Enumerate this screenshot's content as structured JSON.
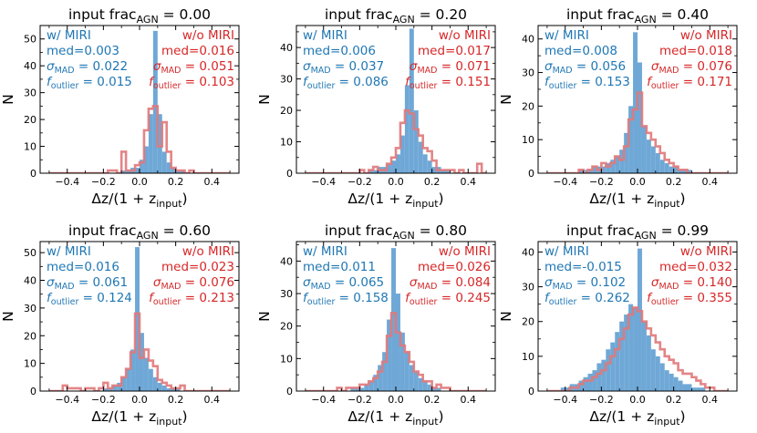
{
  "colors": {
    "with_miri": "#1f77b4",
    "with_miri_bars": "#6fa8d6",
    "without_miri": "#d62728",
    "without_miri_step": "#e0787a"
  },
  "chart_data": [
    {
      "type": "histogram",
      "title_prefix": "input frac",
      "title_sub": "AGN",
      "title_value": "= 0.00",
      "xlabel": "Δz/(1 + z",
      "xlabel_sub": "input",
      "xlabel_suffix": ")",
      "ylabel": "N",
      "xlim": [
        -0.55,
        0.55
      ],
      "ylim": [
        0,
        55
      ],
      "xticks": [
        -0.4,
        -0.2,
        0.0,
        0.2,
        0.4
      ],
      "xtick_labels": [
        "−0.4",
        "−0.2",
        "0.0",
        "0.2",
        "0.4"
      ],
      "yticks": [
        0,
        10,
        20,
        30,
        40,
        50
      ],
      "ytick_labels": [
        "0",
        "10",
        "20",
        "30",
        "40",
        "50"
      ],
      "bin_edges_start": -0.5,
      "bin_width": 0.025,
      "with_miri_counts": [
        0,
        0,
        0,
        0,
        0,
        0,
        0,
        0,
        0,
        0,
        0,
        0,
        0,
        0,
        0,
        0,
        1,
        1,
        2,
        2,
        5,
        10,
        22,
        53,
        22,
        8,
        4,
        2,
        1,
        1,
        0,
        0,
        0,
        0,
        0,
        0,
        0,
        0,
        0,
        0
      ],
      "without_miri_counts": [
        0,
        0,
        0,
        0,
        0,
        0,
        0,
        0,
        0,
        0,
        0,
        0,
        0,
        1,
        1,
        0,
        8,
        1,
        1,
        3,
        4,
        16,
        24,
        25,
        10,
        19,
        8,
        2,
        1,
        1,
        0,
        1,
        0,
        0,
        0,
        0,
        0,
        0,
        0,
        0
      ],
      "with_miri_stats": {
        "label": "w/ MIRI",
        "med": "med=0.003",
        "sigma_value": " = 0.022",
        "foutlier_value": " = 0.015"
      },
      "without_miri_stats": {
        "label": "w/o MIRI",
        "med": "med=0.016",
        "sigma_value": " = 0.051",
        "foutlier_value": " = 0.103"
      }
    },
    {
      "type": "histogram",
      "title_prefix": "input frac",
      "title_sub": "AGN",
      "title_value": "= 0.20",
      "xlabel": "Δz/(1 + z",
      "xlabel_sub": "input",
      "xlabel_suffix": ")",
      "ylabel": "N",
      "xlim": [
        -0.55,
        0.55
      ],
      "ylim": [
        0,
        47
      ],
      "xticks": [
        -0.4,
        -0.2,
        0.0,
        0.2,
        0.4
      ],
      "xtick_labels": [
        "−0.4",
        "−0.2",
        "0.0",
        "0.2",
        "0.4"
      ],
      "yticks": [
        0,
        10,
        20,
        30,
        40
      ],
      "ytick_labels": [
        "0",
        "10",
        "20",
        "30",
        "40"
      ],
      "bin_edges_start": -0.5,
      "bin_width": 0.025,
      "with_miri_counts": [
        0,
        0,
        0,
        0,
        0,
        0,
        0,
        0,
        0,
        0,
        0,
        0,
        0,
        0,
        1,
        1,
        2,
        2,
        3,
        4,
        6,
        12,
        28,
        46,
        20,
        10,
        6,
        4,
        2,
        2,
        1,
        1,
        0,
        0,
        0,
        0,
        0,
        0,
        0,
        0
      ],
      "without_miri_counts": [
        0,
        0,
        0,
        0,
        0,
        0,
        0,
        0,
        0,
        0,
        0,
        0,
        1,
        0,
        1,
        2,
        1,
        1,
        3,
        5,
        8,
        16,
        20,
        19,
        14,
        12,
        8,
        7,
        4,
        1,
        1,
        1,
        1,
        0,
        1,
        0,
        0,
        0,
        3,
        0
      ],
      "with_miri_stats": {
        "label": "w/ MIRI",
        "med": "med=0.006",
        "sigma_value": " = 0.037",
        "foutlier_value": " = 0.086"
      },
      "without_miri_stats": {
        "label": "w/o MIRI",
        "med": "med=0.017",
        "sigma_value": " = 0.071",
        "foutlier_value": " = 0.151"
      }
    },
    {
      "type": "histogram",
      "title_prefix": "input frac",
      "title_sub": "AGN",
      "title_value": "= 0.40",
      "xlabel": "Δz/(1 + z",
      "xlabel_sub": "input",
      "xlabel_suffix": ")",
      "ylabel": "N",
      "xlim": [
        -0.55,
        0.55
      ],
      "ylim": [
        0,
        44
      ],
      "xticks": [
        -0.4,
        -0.2,
        0.0,
        0.2,
        0.4
      ],
      "xtick_labels": [
        "−0.4",
        "−0.2",
        "0.0",
        "0.2",
        "0.4"
      ],
      "yticks": [
        0,
        10,
        20,
        30,
        40
      ],
      "ytick_labels": [
        "0",
        "10",
        "20",
        "30",
        "40"
      ],
      "bin_edges_start": -0.5,
      "bin_width": 0.025,
      "with_miri_counts": [
        0,
        0,
        0,
        0,
        0,
        0,
        0,
        1,
        1,
        1,
        2,
        2,
        2,
        3,
        4,
        5,
        7,
        12,
        20,
        42,
        33,
        14,
        10,
        8,
        6,
        4,
        3,
        2,
        2,
        1,
        1,
        1,
        0,
        0,
        0,
        0,
        0,
        0,
        0,
        0
      ],
      "without_miri_counts": [
        0,
        0,
        0,
        0,
        0,
        0,
        0,
        1,
        0,
        1,
        2,
        1,
        3,
        2,
        3,
        5,
        4,
        8,
        16,
        19,
        24,
        14,
        12,
        10,
        8,
        6,
        4,
        3,
        2,
        1,
        1,
        0,
        0,
        0,
        0,
        0,
        0,
        0,
        0,
        0
      ],
      "with_miri_stats": {
        "label": "w/ MIRI",
        "med": "med=0.008",
        "sigma_value": " = 0.056",
        "foutlier_value": " = 0.153"
      },
      "without_miri_stats": {
        "label": "w/o MIRI",
        "med": "med=0.018",
        "sigma_value": " = 0.076",
        "foutlier_value": " = 0.171"
      }
    },
    {
      "type": "histogram",
      "title_prefix": "input frac",
      "title_sub": "AGN",
      "title_value": "= 0.60",
      "xlabel": "Δz/(1 + z",
      "xlabel_sub": "input",
      "xlabel_suffix": ")",
      "ylabel": "N",
      "xlim": [
        -0.55,
        0.55
      ],
      "ylim": [
        0,
        54
      ],
      "xticks": [
        -0.4,
        -0.2,
        0.0,
        0.2,
        0.4
      ],
      "xtick_labels": [
        "−0.4",
        "−0.2",
        "0.0",
        "0.2",
        "0.4"
      ],
      "yticks": [
        0,
        10,
        20,
        30,
        40,
        50
      ],
      "ytick_labels": [
        "0",
        "10",
        "20",
        "30",
        "40",
        "50"
      ],
      "bin_edges_start": -0.5,
      "bin_width": 0.025,
      "with_miri_counts": [
        0,
        0,
        0,
        0,
        0,
        0,
        0,
        0,
        0,
        0,
        0,
        0,
        1,
        1,
        2,
        3,
        5,
        8,
        15,
        52,
        21,
        12,
        8,
        5,
        3,
        2,
        1,
        1,
        1,
        0,
        0,
        0,
        0,
        0,
        0,
        0,
        0,
        0,
        0,
        0
      ],
      "without_miri_counts": [
        0,
        0,
        0,
        2,
        1,
        1,
        1,
        0,
        1,
        1,
        0,
        1,
        3,
        1,
        2,
        2,
        5,
        8,
        14,
        28,
        12,
        15,
        11,
        9,
        4,
        3,
        2,
        1,
        1,
        2,
        0,
        0,
        0,
        0,
        0,
        0,
        0,
        0,
        0,
        0
      ],
      "with_miri_stats": {
        "label": "w/ MIRI",
        "med": "med=0.016",
        "sigma_value": " = 0.061",
        "foutlier_value": " = 0.124"
      },
      "without_miri_stats": {
        "label": "w/o MIRI",
        "med": "med=0.023",
        "sigma_value": " = 0.076",
        "foutlier_value": " = 0.213"
      }
    },
    {
      "type": "histogram",
      "title_prefix": "input frac",
      "title_sub": "AGN",
      "title_value": "= 0.80",
      "xlabel": "Δz/(1 + z",
      "xlabel_sub": "input",
      "xlabel_suffix": ")",
      "ylabel": "N",
      "xlim": [
        -0.55,
        0.55
      ],
      "ylim": [
        0,
        46
      ],
      "xticks": [
        -0.4,
        -0.2,
        0.0,
        0.2,
        0.4
      ],
      "xtick_labels": [
        "−0.4",
        "−0.2",
        "0.0",
        "0.2",
        "0.4"
      ],
      "yticks": [
        0,
        10,
        20,
        30,
        40
      ],
      "ytick_labels": [
        "0",
        "10",
        "20",
        "30",
        "40"
      ],
      "bin_edges_start": -0.5,
      "bin_width": 0.025,
      "with_miri_counts": [
        0,
        0,
        0,
        0,
        0,
        0,
        0,
        0,
        0,
        0,
        1,
        1,
        1,
        2,
        3,
        5,
        8,
        12,
        22,
        44,
        30,
        18,
        12,
        8,
        6,
        4,
        3,
        2,
        1,
        1,
        0,
        0,
        0,
        0,
        0,
        0,
        0,
        0,
        0,
        0
      ],
      "without_miri_counts": [
        0,
        0,
        0,
        0,
        0,
        0,
        0,
        1,
        0,
        1,
        1,
        1,
        2,
        2,
        3,
        4,
        6,
        9,
        17,
        24,
        18,
        14,
        12,
        9,
        6,
        5,
        3,
        3,
        1,
        2,
        1,
        1,
        0,
        0,
        0,
        0,
        0,
        0,
        0,
        0
      ],
      "with_miri_stats": {
        "label": "w/ MIRI",
        "med": "med=0.011",
        "sigma_value": " = 0.065",
        "foutlier_value": " = 0.158"
      },
      "without_miri_stats": {
        "label": "w/o MIRI",
        "med": "med=0.026",
        "sigma_value": " = 0.084",
        "foutlier_value": " = 0.245"
      }
    },
    {
      "type": "histogram",
      "title_prefix": "input frac",
      "title_sub": "AGN",
      "title_value": "= 0.99",
      "xlabel": "Δz/(1 + z",
      "xlabel_sub": "input",
      "xlabel_suffix": ")",
      "ylabel": "N",
      "xlim": [
        -0.55,
        0.55
      ],
      "ylim": [
        0,
        43
      ],
      "xticks": [
        -0.4,
        -0.2,
        0.0,
        0.2,
        0.4
      ],
      "xtick_labels": [
        "−0.4",
        "−0.2",
        "0.0",
        "0.2",
        "0.4"
      ],
      "yticks": [
        0,
        10,
        20,
        30,
        40
      ],
      "ytick_labels": [
        "0",
        "10",
        "20",
        "30",
        "40"
      ],
      "bin_edges_start": -0.5,
      "bin_width": 0.025,
      "with_miri_counts": [
        0,
        0,
        0,
        1,
        1,
        2,
        2,
        3,
        4,
        5,
        6,
        8,
        9,
        12,
        14,
        17,
        20,
        22,
        25,
        24,
        41,
        20,
        16,
        12,
        10,
        8,
        6,
        5,
        4,
        3,
        2,
        2,
        1,
        1,
        1,
        0,
        0,
        0,
        0,
        0
      ],
      "without_miri_counts": [
        0,
        0,
        0,
        0,
        0,
        1,
        1,
        2,
        3,
        3,
        4,
        5,
        6,
        8,
        10,
        12,
        15,
        18,
        22,
        24,
        23,
        20,
        18,
        16,
        14,
        12,
        10,
        9,
        8,
        6,
        5,
        5,
        4,
        3,
        2,
        1,
        1,
        0,
        0,
        0
      ],
      "with_miri_stats": {
        "label": "w/ MIRI",
        "med": "med=-0.015",
        "sigma_value": " = 0.102",
        "foutlier_value": " = 0.262"
      },
      "without_miri_stats": {
        "label": "w/o MIRI",
        "med": "med=0.032",
        "sigma_value": " = 0.140",
        "foutlier_value": " = 0.355"
      }
    }
  ]
}
